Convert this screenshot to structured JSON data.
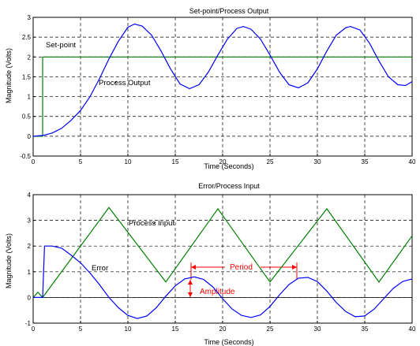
{
  "colors": {
    "process": "#0000ff",
    "setpoint": "#008000",
    "annotation": "#ff0000",
    "axis": "#000000"
  },
  "chart_data": [
    {
      "type": "line",
      "title": "Set-point/Process Output",
      "xlabel": "Time (Seconds)",
      "ylabel": "Magnitude (Volts)",
      "xlim": [
        0,
        40
      ],
      "ylim": [
        -0.5,
        3
      ],
      "xticks": [
        "0",
        "5",
        "10",
        "15",
        "20",
        "25",
        "30",
        "35",
        "40"
      ],
      "yticks": [
        "-0.5",
        "0",
        "0.5",
        "1",
        "1.5",
        "2",
        "2.5",
        "3"
      ],
      "grid": true,
      "annotations": [
        "Set-point",
        "Process Output"
      ],
      "series": [
        {
          "name": "Set-point",
          "x": [
            0,
            1,
            1,
            40
          ],
          "y": [
            0,
            0,
            2,
            2
          ]
        },
        {
          "name": "Process Output",
          "x": [
            0,
            1,
            2,
            3,
            4,
            5,
            6,
            7,
            8,
            9,
            10,
            10.7,
            11.5,
            12.5,
            13.5,
            14.5,
            15.5,
            16.5,
            17.5,
            18.5,
            19.5,
            20.5,
            21.5,
            22.2,
            23,
            24,
            25,
            26,
            27,
            28,
            29,
            30,
            31,
            32,
            33,
            33.5,
            34.5,
            35.5,
            36.5,
            37.5,
            38.5,
            39.3,
            40
          ],
          "y": [
            0,
            0.02,
            0.08,
            0.2,
            0.4,
            0.65,
            1.0,
            1.45,
            1.95,
            2.4,
            2.75,
            2.83,
            2.78,
            2.55,
            2.15,
            1.7,
            1.32,
            1.2,
            1.3,
            1.62,
            2.05,
            2.45,
            2.72,
            2.77,
            2.7,
            2.45,
            2.05,
            1.62,
            1.3,
            1.22,
            1.35,
            1.7,
            2.15,
            2.55,
            2.74,
            2.77,
            2.68,
            2.35,
            1.9,
            1.5,
            1.3,
            1.28,
            1.38
          ]
        }
      ]
    },
    {
      "type": "line",
      "title": "Error/Process Input",
      "xlabel": "Time (Seconds)",
      "ylabel": "Magnitude (Volts)",
      "xlim": [
        0,
        40
      ],
      "ylim": [
        -1,
        4
      ],
      "xticks": [
        "0",
        "5",
        "10",
        "15",
        "20",
        "25",
        "30",
        "35",
        "40"
      ],
      "yticks": [
        "-1",
        "0",
        "1",
        "2",
        "3",
        "4"
      ],
      "grid": true,
      "annotations": [
        "Process Input",
        "Error",
        "Period",
        "Amplitude"
      ],
      "series": [
        {
          "name": "Process Input",
          "x": [
            0,
            0.5,
            1,
            8,
            14,
            19.5,
            25,
            31,
            36.5,
            40
          ],
          "y": [
            0,
            0.2,
            0,
            3.5,
            0.6,
            3.45,
            0.6,
            3.45,
            0.6,
            2.4
          ]
        },
        {
          "name": "Error",
          "x": [
            0,
            1,
            1.2,
            2,
            3,
            4,
            5,
            6,
            7,
            8,
            9,
            10,
            11,
            12,
            13,
            14,
            15,
            16,
            17,
            18,
            19,
            20,
            21,
            22,
            23,
            24,
            25,
            26,
            27,
            28,
            29,
            30,
            31,
            32,
            33,
            34,
            35,
            36,
            37,
            38,
            39,
            40
          ],
          "y": [
            0,
            0,
            2.0,
            2.0,
            1.92,
            1.65,
            1.35,
            0.95,
            0.5,
            0.0,
            -0.4,
            -0.7,
            -0.82,
            -0.72,
            -0.4,
            0.05,
            0.45,
            0.72,
            0.8,
            0.7,
            0.4,
            -0.05,
            -0.45,
            -0.7,
            -0.78,
            -0.68,
            -0.35,
            0.1,
            0.5,
            0.75,
            0.78,
            0.62,
            0.25,
            -0.2,
            -0.55,
            -0.75,
            -0.72,
            -0.45,
            -0.05,
            0.35,
            0.62,
            0.72
          ]
        }
      ]
    }
  ],
  "labels": {
    "setpoint": "Set-point",
    "process_output": "Process Output",
    "process_input": "Process Input",
    "error": "Error",
    "period": "Period",
    "amplitude": "Amplitude"
  }
}
